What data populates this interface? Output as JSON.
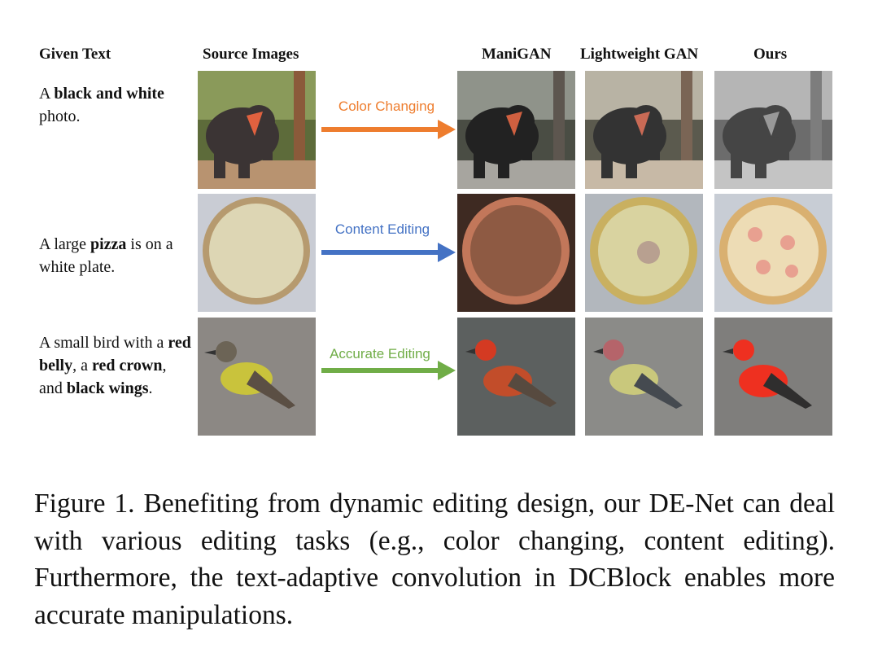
{
  "headers": {
    "given_text": "Given Text",
    "source_images": "Source Images",
    "manigan": "ManiGAN",
    "lightweight_gan": "Lightweight GAN",
    "ours": "Ours"
  },
  "rows": [
    {
      "text_parts": [
        {
          "t": "A ",
          "bold": false
        },
        {
          "t": "black and white",
          "bold": true
        },
        {
          "t": " photo.",
          "bold": false
        }
      ],
      "arrow_label": "Color Changing",
      "arrow_color": "#ee7d2e",
      "image_subject": "elephant"
    },
    {
      "text_parts": [
        {
          "t": "A large ",
          "bold": false
        },
        {
          "t": "pizza",
          "bold": true
        },
        {
          "t": " is on a white plate.",
          "bold": false
        }
      ],
      "arrow_label": "Content Editing",
      "arrow_color": "#4472c4",
      "image_subject": "pizza"
    },
    {
      "text_parts": [
        {
          "t": "A small bird with a ",
          "bold": false
        },
        {
          "t": "red belly",
          "bold": true
        },
        {
          "t": ", a ",
          "bold": false
        },
        {
          "t": "red crown",
          "bold": true
        },
        {
          "t": ", and ",
          "bold": false
        },
        {
          "t": "black wings",
          "bold": true
        },
        {
          "t": ".",
          "bold": false
        }
      ],
      "arrow_label": "Accurate Editing",
      "arrow_color": "#70ad47",
      "image_subject": "bird"
    }
  ],
  "caption": "Figure 1.  Benefiting from dynamic editing design, our DE-Net can deal with various editing tasks (e.g., color changing, content editing). Furthermore, the text-adaptive convolution in DCBlock enables more accurate manipulations."
}
